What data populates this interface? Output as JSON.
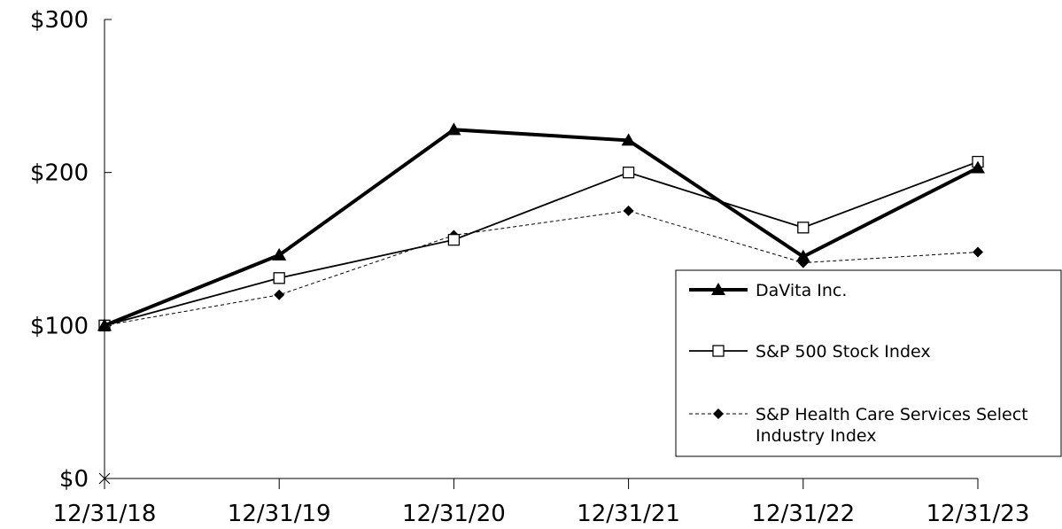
{
  "chart_data": {
    "type": "line",
    "categories": [
      "12/31/18",
      "12/31/19",
      "12/31/20",
      "12/31/21",
      "12/31/22",
      "12/31/23"
    ],
    "y_ticks": [
      "$0",
      "$100",
      "$200",
      "$300"
    ],
    "ylim": [
      0,
      300
    ],
    "series": [
      {
        "name": "DaVita Inc.",
        "values": [
          100,
          146,
          228,
          221,
          145,
          203
        ],
        "line_style": "solid-thick",
        "marker": "triangle-filled",
        "color": "#000000"
      },
      {
        "name": "S&P 500 Stock Index",
        "values": [
          100,
          131,
          156,
          200,
          164,
          207
        ],
        "line_style": "solid",
        "marker": "square-open",
        "color": "#000000"
      },
      {
        "name": "S&P Health Care Services Select Industry Index",
        "name_lines": [
          "S&P Health Care Services Select",
          "Industry Index"
        ],
        "values": [
          100,
          120,
          159,
          175,
          141,
          148
        ],
        "line_style": "dashed",
        "marker": "diamond-filled",
        "color": "#000000"
      }
    ],
    "legend_position": "right",
    "grid": false
  }
}
